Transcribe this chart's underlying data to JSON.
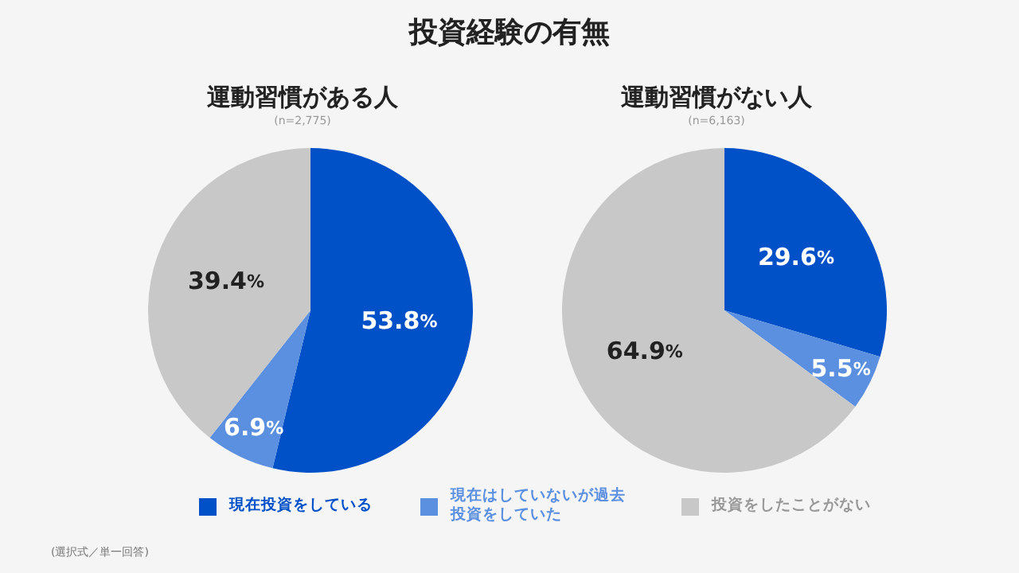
{
  "chart_data": [
    {
      "type": "pie",
      "title": "運動習慣がある人",
      "subtitle": "(n=2,775)",
      "annotations": [
        "投資経験の有無",
        "(選択式／単一回答)"
      ],
      "categories": [
        "現在投資をしている",
        "現在はしていないが過去投資をしていた",
        "投資をしたことがない"
      ],
      "values": [
        53.8,
        6.9,
        39.4
      ],
      "value_labels": [
        "53.8%",
        "6.9%",
        "39.4%"
      ],
      "colors": [
        "#0050c8",
        "#5b8fe0",
        "#c8c8c8"
      ],
      "legend": "bottom"
    },
    {
      "type": "pie",
      "title": "運動習慣がない人",
      "subtitle": "(n=6,163)",
      "categories": [
        null,
        null,
        null
      ],
      "values": [
        29.6,
        5.5,
        64.9
      ],
      "value_labels": [
        "29.6%",
        "5.5%",
        "64.9%"
      ],
      "colors": [
        "#0050c8",
        "#5b8fe0",
        "#c8c8c8"
      ]
    }
  ]
}
